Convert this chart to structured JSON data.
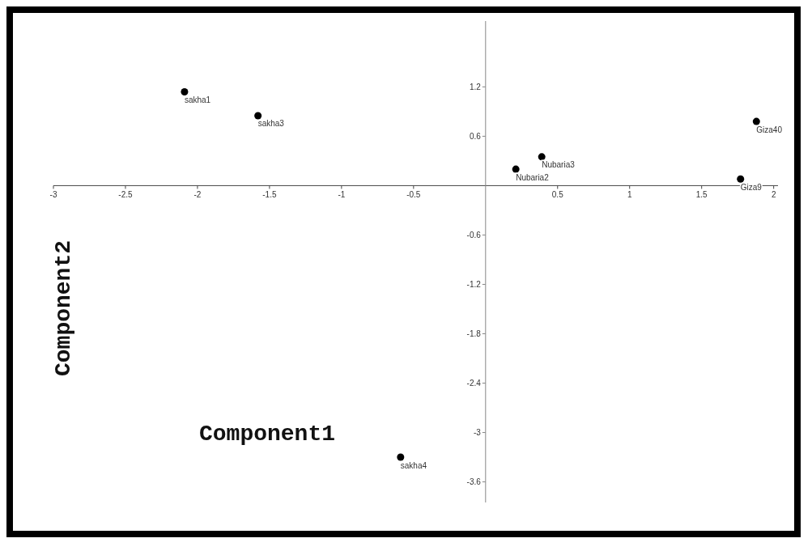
{
  "chart_data": {
    "type": "scatter",
    "xlabel": "Component1",
    "ylabel": "Component2",
    "xlim": [
      -3,
      2.03
    ],
    "ylim": [
      -3.85,
      2.0
    ],
    "xticks": [
      -3,
      -2.5,
      -2,
      -1.5,
      -1,
      -0.5,
      0.5,
      1,
      1.5,
      2
    ],
    "yticks": [
      -3.6,
      -3,
      -2.4,
      -1.8,
      -1.2,
      -0.6,
      0.6,
      1.2
    ],
    "grid": false,
    "marker": "circle",
    "series": [
      {
        "name": "sakha1",
        "color": "#000000",
        "x": [
          -2.09
        ],
        "values": [
          1.14
        ]
      },
      {
        "name": "sakha3",
        "color": "#000000",
        "x": [
          -1.58
        ],
        "values": [
          0.85
        ]
      },
      {
        "name": "Nubaria3",
        "color": "#000000",
        "x": [
          0.39
        ],
        "values": [
          0.35
        ]
      },
      {
        "name": "Nubaria2",
        "color": "#000000",
        "x": [
          0.21
        ],
        "values": [
          0.2
        ]
      },
      {
        "name": "Giza40",
        "color": "#000000",
        "x": [
          1.88
        ],
        "values": [
          0.78
        ]
      },
      {
        "name": "Giza9",
        "color": "#000000",
        "x": [
          1.77
        ],
        "values": [
          0.08
        ]
      },
      {
        "name": "sakha4",
        "color": "#000000",
        "x": [
          -0.59
        ],
        "values": [
          -3.3
        ]
      }
    ]
  }
}
